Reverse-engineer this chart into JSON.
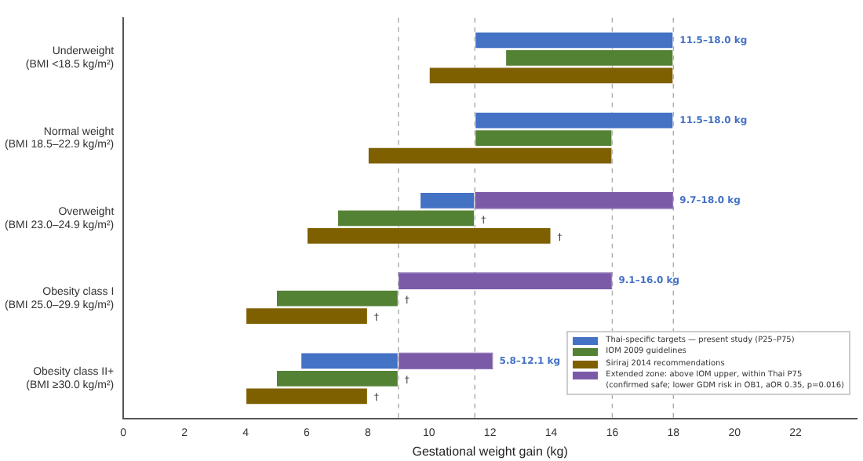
{
  "chart_data": {
    "type": "bar",
    "orientation": "horizontal",
    "xlabel": "Gestational weight gain (kg)",
    "categories": [
      "Underweight\n(BMI <18.5 kg/m²)",
      "Normal weight\n(BMI 18.5–22.9 kg/m²)",
      "Overweight\n(BMI 23.0–24.9 kg/m²)",
      "Obesity class I\n(BMI 25.0–29.9 kg/m²)",
      "Obesity class II+\n(BMI ≥30.0 kg/m²)"
    ],
    "series": [
      {
        "name": "Thai-specific targets — present study (P25–P75)",
        "color": "#4472c4",
        "base": [
          11.5,
          11.5,
          9.7,
          null,
          5.8
        ],
        "values": [
          6.5,
          6.5,
          1.8,
          null,
          3.2
        ],
        "value_labels": [
          "11.5–18.0 kg",
          "11.5–18.0 kg",
          null,
          null,
          null
        ]
      },
      {
        "name": "Extended zone: above IOM upper, within Thai P75\n(confirmed safe; lower GDM risk in OB1, aOR 0.35, p=0.016)",
        "color": "#7b5ba8",
        "base": [
          null,
          null,
          11.5,
          9,
          9
        ],
        "values": [
          null,
          null,
          6.5,
          7,
          3.1
        ],
        "value_labels": [
          null,
          null,
          "9.7–18.0 kg",
          "9.1–16.0 kg",
          "5.8–12.1 kg"
        ]
      },
      {
        "name": "IOM 2009 guidelines",
        "color": "#548235",
        "base": [
          12.5,
          11.5,
          7,
          5,
          5
        ],
        "values": [
          5.5,
          4.5,
          4.5,
          4,
          4
        ],
        "value_labels": [
          null,
          null,
          "†",
          "†",
          "†"
        ]
      },
      {
        "name": "Siriraj 2014 recommendations",
        "color": "#7f6000",
        "base": [
          10,
          8,
          6,
          4,
          4
        ],
        "values": [
          8,
          8,
          8,
          4,
          4
        ],
        "value_labels": [
          null,
          null,
          "†",
          "†",
          "†"
        ]
      }
    ],
    "xlim": [
      0,
      24
    ],
    "xticks": [
      0,
      2,
      4,
      6,
      8,
      10,
      12,
      14,
      16,
      18,
      20,
      22
    ],
    "ref_lines": [
      {
        "axis": "x",
        "value": 9,
        "line_style": "dashed"
      },
      {
        "axis": "x",
        "value": 11.5,
        "line_style": "dashed"
      },
      {
        "axis": "x",
        "value": 16,
        "line_style": "dashed"
      },
      {
        "axis": "x",
        "value": 18,
        "line_style": "dashed"
      }
    ],
    "grid": false,
    "legend": "bottom right"
  }
}
